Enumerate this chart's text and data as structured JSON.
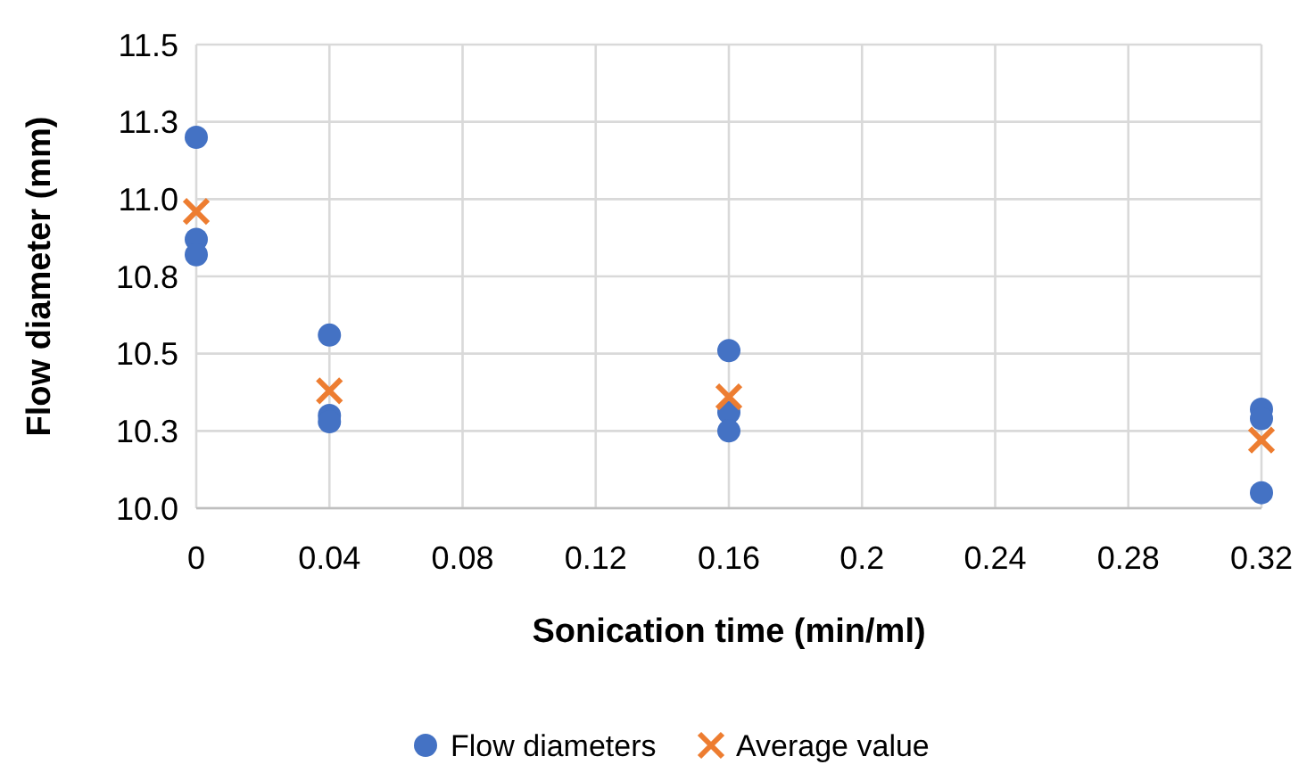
{
  "chart_data": {
    "type": "scatter",
    "xlabel": "Sonication time (min/ml)",
    "ylabel": "Flow diameter (mm)",
    "xlim": [
      0,
      0.32
    ],
    "xticks": [
      0,
      0.04,
      0.08,
      0.12,
      0.16,
      0.2,
      0.24,
      0.28,
      0.32
    ],
    "ylim": [
      10,
      11.5
    ],
    "yticks": [
      {
        "value": 10,
        "label": "10.0"
      },
      {
        "value": 10.25,
        "label": "10.3"
      },
      {
        "value": 10.5,
        "label": "10.5"
      },
      {
        "value": 10.75,
        "label": "10.8"
      },
      {
        "value": 11,
        "label": "11.0"
      },
      {
        "value": 11.25,
        "label": "11.3"
      },
      {
        "value": 11.5,
        "label": "11.5"
      }
    ],
    "grid": true,
    "legend": "bottom",
    "series": [
      {
        "name": "Flow diameters",
        "color": "#4472c4",
        "marker": "circle",
        "x": [
          0,
          0,
          0,
          0.04,
          0.04,
          0.04,
          0.16,
          0.16,
          0.16,
          0.32,
          0.32,
          0.32
        ],
        "values": [
          11.2,
          10.87,
          10.82,
          10.56,
          10.3,
          10.28,
          10.51,
          10.31,
          10.25,
          10.32,
          10.29,
          10.05
        ]
      },
      {
        "name": "Average value",
        "color": "#ed7d31",
        "marker": "cross",
        "x": [
          0,
          0.04,
          0.16,
          0.32
        ],
        "values": [
          10.96,
          10.38,
          10.36,
          10.22
        ]
      }
    ]
  }
}
